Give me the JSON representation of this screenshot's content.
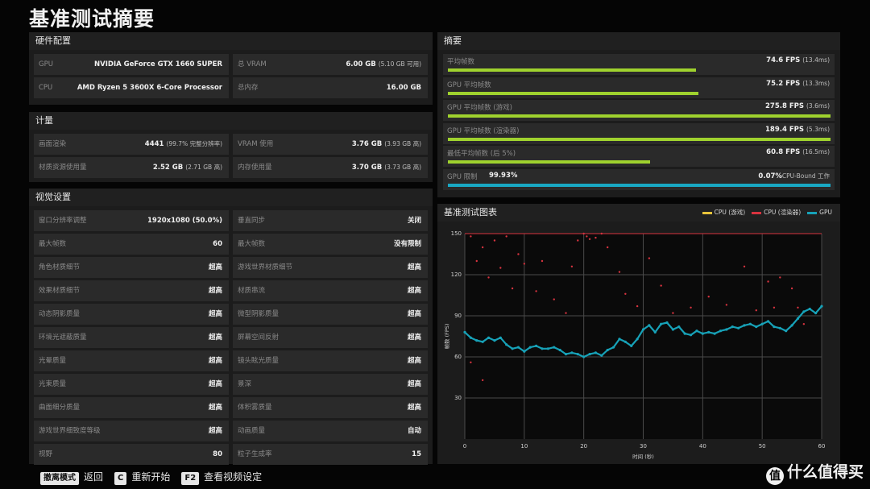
{
  "title": "基准测试摘要",
  "hardware": {
    "heading": "硬件配置",
    "rows": [
      {
        "key": "GPU",
        "value": "NVIDIA GeForce GTX 1660 SUPER",
        "sub": ""
      },
      {
        "key": "总 VRAM",
        "value": "6.00 GB",
        "sub": "(5.10 GB 可用)"
      },
      {
        "key": "CPU",
        "value": "AMD Ryzen 5 3600X 6-Core Processor",
        "sub": ""
      },
      {
        "key": "总内存",
        "value": "16.00 GB",
        "sub": ""
      }
    ]
  },
  "metrics": {
    "heading": "计量",
    "rows": [
      {
        "key": "画面渲染",
        "value": "4441",
        "sub": "(99.7% 完整分辨率)"
      },
      {
        "key": "VRAM 使用",
        "value": "3.76 GB",
        "sub": "(3.93 GB 高)"
      },
      {
        "key": "材质资源使用量",
        "value": "2.52 GB",
        "sub": "(2.71 GB 高)"
      },
      {
        "key": "内存使用量",
        "value": "3.70 GB",
        "sub": "(3.73 GB 高)"
      }
    ]
  },
  "visual": {
    "heading": "视觉设置",
    "rows": [
      {
        "key": "窗口分辨率调整",
        "value": "1920x1080 (50.0%)"
      },
      {
        "key": "垂直同步",
        "value": "关闭"
      },
      {
        "key": "最大帧数",
        "value": "60"
      },
      {
        "key": "最大帧数",
        "value": "没有限制"
      },
      {
        "key": "角色材质细节",
        "value": "超高"
      },
      {
        "key": "游戏世界材质细节",
        "value": "超高"
      },
      {
        "key": "效果材质细节",
        "value": "超高"
      },
      {
        "key": "材质串流",
        "value": "超高"
      },
      {
        "key": "动态阴影质量",
        "value": "超高"
      },
      {
        "key": "微型阴影质量",
        "value": "超高"
      },
      {
        "key": "环境光遮蔽质量",
        "value": "超高"
      },
      {
        "key": "屏幕空间反射",
        "value": "超高"
      },
      {
        "key": "光晕质量",
        "value": "超高"
      },
      {
        "key": "镜头眩光质量",
        "value": "超高"
      },
      {
        "key": "光束质量",
        "value": "超高"
      },
      {
        "key": "景深",
        "value": "超高"
      },
      {
        "key": "曲面细分质量",
        "value": "超高"
      },
      {
        "key": "体积雾质量",
        "value": "超高"
      },
      {
        "key": "游戏世界细致度等级",
        "value": "超高"
      },
      {
        "key": "动画质量",
        "value": "自动"
      },
      {
        "key": "视野",
        "value": "80"
      },
      {
        "key": "粒子生成率",
        "value": "15"
      }
    ]
  },
  "summary": {
    "heading": "摘要",
    "rows": [
      {
        "key": "平均帧数",
        "value": "74.6 FPS",
        "sub": "(13.4ms)",
        "fill": 0.649,
        "color": "#9fd22e"
      },
      {
        "key": "GPU 平均帧数",
        "value": "75.2 FPS",
        "sub": "(13.3ms)",
        "fill": 0.654,
        "color": "#9fd22e"
      },
      {
        "key": "GPU 平均帧数 (游戏)",
        "value": "275.8 FPS",
        "sub": "(3.6ms)",
        "fill": 1.0,
        "color": "#9fd22e"
      },
      {
        "key": "GPU 平均帧数 (渲染器)",
        "value": "189.4 FPS",
        "sub": "(5.3ms)",
        "fill": 1.0,
        "color": "#9fd22e"
      },
      {
        "key": "最低平均帧数 (后 5%)",
        "value": "60.8 FPS",
        "sub": "(16.5ms)",
        "fill": 0.529,
        "color": "#9fd22e"
      }
    ],
    "limit": {
      "key": "GPU 限制",
      "left_pct": "99.93%",
      "right_pct": "0.07%",
      "right_label": "CPU-Bound 工作",
      "fill": 0.9993,
      "color": "#19a8c4"
    }
  },
  "chart_panel": {
    "heading": "基准测试图表"
  },
  "chart_data": {
    "type": "scatter",
    "title": "基准测试图表",
    "xlabel": "时间 (秒)",
    "ylabel": "帧数 (FPS)",
    "xlim": [
      0,
      60
    ],
    "ylim": [
      0,
      150
    ],
    "x_ticks": [
      0,
      10,
      20,
      30,
      40,
      50,
      60
    ],
    "y_ticks": [
      30,
      60,
      90,
      120,
      150
    ],
    "grid": true,
    "legend_position": "top-right",
    "reference_line": {
      "y": 150,
      "color": "#d8333f"
    },
    "series": [
      {
        "name": "CPU (游戏)",
        "color": "#e8c33a",
        "points": []
      },
      {
        "name": "CPU (渲染器)",
        "color": "#d8333f",
        "points": [
          [
            1,
            148
          ],
          [
            2,
            130
          ],
          [
            3,
            140
          ],
          [
            4,
            118
          ],
          [
            5,
            145
          ],
          [
            6,
            125
          ],
          [
            7,
            148
          ],
          [
            8,
            110
          ],
          [
            9,
            135
          ],
          [
            10,
            128
          ],
          [
            12,
            108
          ],
          [
            13,
            130
          ],
          [
            15,
            102
          ],
          [
            17,
            92
          ],
          [
            18,
            126
          ],
          [
            19,
            145
          ],
          [
            20,
            150
          ],
          [
            20.5,
            148
          ],
          [
            21,
            146
          ],
          [
            22,
            147
          ],
          [
            23,
            150
          ],
          [
            24,
            140
          ],
          [
            26,
            122
          ],
          [
            27,
            106
          ],
          [
            29,
            97
          ],
          [
            31,
            132
          ],
          [
            33,
            112
          ],
          [
            35,
            92
          ],
          [
            38,
            96
          ],
          [
            41,
            104
          ],
          [
            44,
            98
          ],
          [
            47,
            126
          ],
          [
            49,
            94
          ],
          [
            51,
            115
          ],
          [
            52,
            96
          ],
          [
            53,
            118
          ],
          [
            55,
            110
          ],
          [
            56,
            96
          ],
          [
            57,
            84
          ],
          [
            1,
            56
          ],
          [
            3,
            43
          ]
        ]
      },
      {
        "name": "GPU",
        "color": "#17a2b8",
        "points": [
          [
            0,
            78
          ],
          [
            1,
            74
          ],
          [
            2,
            72
          ],
          [
            3,
            71
          ],
          [
            4,
            74
          ],
          [
            5,
            72
          ],
          [
            6,
            74
          ],
          [
            7,
            69
          ],
          [
            8,
            66
          ],
          [
            9,
            67
          ],
          [
            10,
            64
          ],
          [
            11,
            67
          ],
          [
            12,
            68
          ],
          [
            13,
            66
          ],
          [
            14,
            66
          ],
          [
            15,
            67
          ],
          [
            16,
            65
          ],
          [
            17,
            62
          ],
          [
            18,
            63
          ],
          [
            19,
            62
          ],
          [
            20,
            60
          ],
          [
            21,
            62
          ],
          [
            22,
            63
          ],
          [
            23,
            61
          ],
          [
            24,
            65
          ],
          [
            25,
            67
          ],
          [
            26,
            73
          ],
          [
            27,
            71
          ],
          [
            28,
            68
          ],
          [
            29,
            73
          ],
          [
            30,
            80
          ],
          [
            31,
            83
          ],
          [
            32,
            78
          ],
          [
            33,
            84
          ],
          [
            34,
            85
          ],
          [
            35,
            80
          ],
          [
            36,
            82
          ],
          [
            37,
            77
          ],
          [
            38,
            76
          ],
          [
            39,
            79
          ],
          [
            40,
            77
          ],
          [
            41,
            78
          ],
          [
            42,
            77
          ],
          [
            43,
            79
          ],
          [
            44,
            80
          ],
          [
            45,
            82
          ],
          [
            46,
            81
          ],
          [
            47,
            83
          ],
          [
            48,
            84
          ],
          [
            49,
            82
          ],
          [
            50,
            84
          ],
          [
            51,
            86
          ],
          [
            52,
            82
          ],
          [
            53,
            81
          ],
          [
            54,
            79
          ],
          [
            55,
            83
          ],
          [
            56,
            88
          ],
          [
            57,
            93
          ],
          [
            58,
            95
          ],
          [
            59,
            92
          ],
          [
            60,
            97
          ]
        ]
      }
    ]
  },
  "footer": {
    "items": [
      {
        "key": "撤离模式",
        "label": "返回"
      },
      {
        "key": "C",
        "label": "重新开始"
      },
      {
        "key": "F2",
        "label": "查看视频设定"
      }
    ]
  },
  "brand": {
    "logo": "值",
    "text": "什么值得买"
  }
}
